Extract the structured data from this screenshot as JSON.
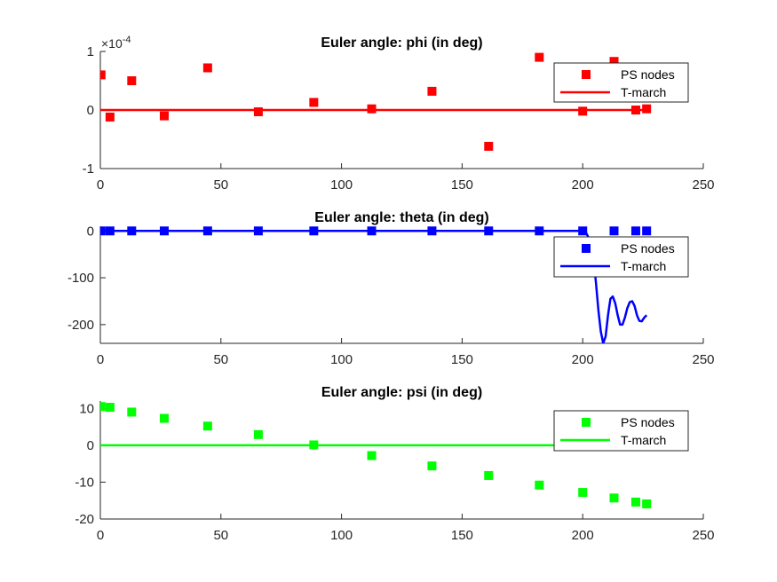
{
  "chart_data": [
    {
      "type": "scatter",
      "title": "Euler angle: phi (in deg)",
      "xlabel": "",
      "ylabel": "",
      "xlim": [
        0,
        250
      ],
      "ylim": [
        -1,
        1
      ],
      "xticks": [
        0,
        50,
        100,
        150,
        200,
        250
      ],
      "yticks": [
        1,
        0,
        -1
      ],
      "y_exponent_label": "×10",
      "y_exponent": "-4",
      "color": "#ff0000",
      "legend_position": "top-right",
      "legend": [
        "PS nodes",
        "T-march"
      ],
      "series": [
        {
          "name": "PS nodes",
          "mode": "markers",
          "x": [
            0.3,
            4,
            13,
            26.5,
            44.5,
            65.5,
            88.5,
            112.5,
            137.5,
            161,
            182,
            200,
            213,
            222,
            226.5
          ],
          "y": [
            0.6,
            -0.12,
            0.5,
            -0.1,
            0.72,
            -0.03,
            0.13,
            0.02,
            0.32,
            -0.62,
            0.9,
            -0.02,
            0.83,
            0.0,
            0.02
          ]
        },
        {
          "name": "T-march",
          "mode": "line",
          "x": [
            0,
            226.5
          ],
          "y": [
            0,
            0
          ]
        }
      ]
    },
    {
      "type": "scatter",
      "title": "Euler angle: theta (in deg)",
      "xlabel": "",
      "ylabel": "",
      "xlim": [
        0,
        250
      ],
      "ylim": [
        -240,
        10
      ],
      "xticks": [
        0,
        50,
        100,
        150,
        200,
        250
      ],
      "yticks": [
        0,
        -100,
        -200
      ],
      "color": "#0000ff",
      "legend_position": "top-right",
      "legend": [
        "PS nodes",
        "T-march"
      ],
      "series": [
        {
          "name": "PS nodes",
          "mode": "markers",
          "x": [
            0.3,
            4,
            13,
            26.5,
            44.5,
            65.5,
            88.5,
            112.5,
            137.5,
            161,
            182,
            200,
            213,
            222,
            226.5
          ],
          "y": [
            0,
            0,
            0,
            0,
            0,
            0,
            0,
            0,
            0,
            0,
            0,
            0,
            0,
            0,
            0
          ]
        },
        {
          "name": "T-march",
          "mode": "line",
          "x": [
            0,
            200,
            201.5,
            202.5,
            203.5,
            204.5,
            205.5,
            206.5,
            207.5,
            208.5,
            209.5,
            210.5,
            211.5,
            212.5,
            213.5,
            214.5,
            215.5,
            216.5,
            217.5,
            218.5,
            219.5,
            220.5,
            221.5,
            222.5,
            223.5,
            224.5,
            225.5,
            226.5
          ],
          "y": [
            0,
            0,
            -5,
            -15,
            -30,
            -60,
            -110,
            -170,
            -215,
            -240,
            -225,
            -180,
            -145,
            -140,
            -155,
            -180,
            -200,
            -200,
            -185,
            -165,
            -152,
            -150,
            -160,
            -180,
            -192,
            -193,
            -185,
            -180
          ]
        }
      ]
    },
    {
      "type": "scatter",
      "title": "Euler angle: psi (in deg)",
      "xlabel": "",
      "ylabel": "",
      "xlim": [
        0,
        250
      ],
      "ylim": [
        -20,
        12
      ],
      "xticks": [
        0,
        50,
        100,
        150,
        200,
        250
      ],
      "yticks": [
        10,
        0,
        -10,
        -20
      ],
      "color": "#00ff00",
      "legend_position": "top-right",
      "legend": [
        "PS nodes",
        "T-march"
      ],
      "series": [
        {
          "name": "PS nodes",
          "mode": "markers",
          "x": [
            0.3,
            4,
            13,
            26.5,
            44.5,
            65.5,
            88.5,
            112.5,
            137.5,
            161,
            182,
            200,
            213,
            222,
            226.5
          ],
          "y": [
            10.5,
            10.3,
            9,
            7.3,
            5.2,
            2.9,
            0.1,
            -2.8,
            -5.6,
            -8.2,
            -10.8,
            -12.8,
            -14.3,
            -15.4,
            -15.9
          ]
        },
        {
          "name": "T-march",
          "mode": "line",
          "x": [
            0,
            226.5
          ],
          "y": [
            0,
            0
          ]
        }
      ]
    }
  ]
}
